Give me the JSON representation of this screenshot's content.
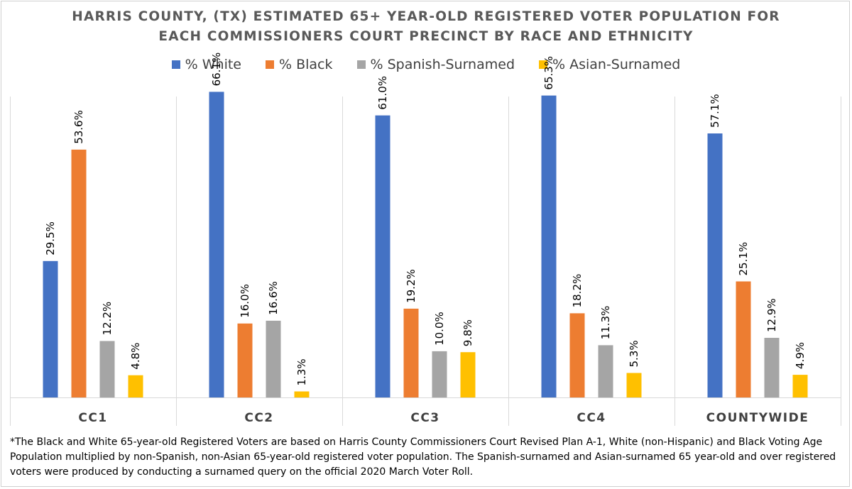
{
  "chart_data": {
    "type": "bar",
    "title_line1": "HARRIS COUNTY, (TX) ESTIMATED 65+ YEAR-OLD REGISTERED VOTER POPULATION FOR",
    "title_line2": "EACH COMMISSIONERS COURT PRECINCT BY RACE AND ETHNICITY",
    "categories": [
      "CC1",
      "CC2",
      "CC3",
      "CC4",
      "COUNTYWIDE"
    ],
    "series": [
      {
        "name": "% White",
        "color": "#4472C4",
        "values": [
          29.5,
          66.1,
          61.0,
          65.3,
          57.1
        ],
        "labels": [
          "29.5%",
          "66.1%",
          "61.0%",
          "65.3%",
          "57.1%"
        ]
      },
      {
        "name": "% Black",
        "color": "#ED7D31",
        "values": [
          53.6,
          16.0,
          19.2,
          18.2,
          25.1
        ],
        "labels": [
          "53.6%",
          "16.0%",
          "19.2%",
          "18.2%",
          "25.1%"
        ]
      },
      {
        "name": "% Spanish-Surnamed",
        "color": "#A5A5A5",
        "values": [
          12.2,
          16.6,
          10.0,
          11.3,
          12.9
        ],
        "labels": [
          "12.2%",
          "16.6%",
          "10.0%",
          "11.3%",
          "12.9%"
        ]
      },
      {
        "name": "% Asian-Surnamed",
        "color": "#FFC000",
        "values": [
          4.8,
          1.3,
          9.8,
          5.3,
          4.9
        ],
        "labels": [
          "4.8%",
          "1.3%",
          "9.8%",
          "5.3%",
          "4.9%"
        ]
      }
    ],
    "ylim": [
      0,
      70
    ],
    "grid": false,
    "legend": "top"
  },
  "footnote": "*The Black and White 65-year-old Registered Voters are based on Harris County Commissioners Court Revised Plan A-1, White (non-Hispanic) and Black Voting Age Population multiplied by non-Spanish, non-Asian 65-year-old registered voter population. The Spanish-surnamed and Asian-surnamed 65 year-old and over registered voters were produced by conducting a surnamed query on the official 2020 March Voter Roll."
}
